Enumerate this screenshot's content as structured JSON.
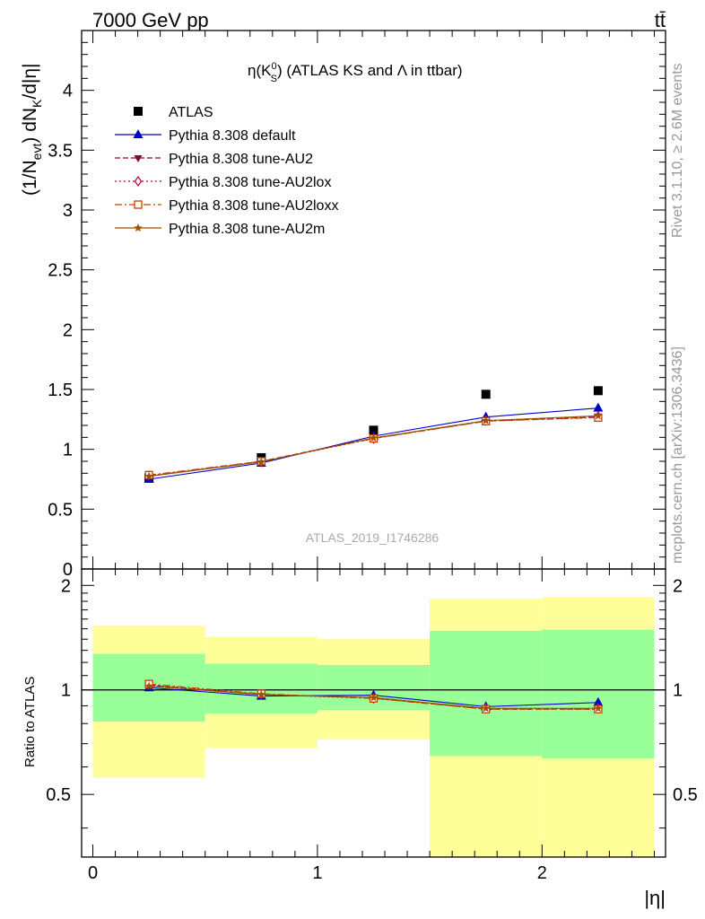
{
  "header": {
    "left": "7000 GeV pp",
    "right": "tt̄"
  },
  "side_labels": {
    "rivet": "Rivet 3.1.10, ≥ 2.6M events",
    "mcplots": "mcplots.cern.ch [arXiv:1306.3436]"
  },
  "chart_data": [
    {
      "type": "scatter",
      "panel": "main",
      "title": "η(K⁰S) (ATLAS KS and Λ in ttbar)",
      "title_parts": {
        "pre": "η(K",
        "sup": "0",
        "sub": "S",
        "post": ") (ATLAS KS and Λ in ttbar)"
      },
      "ylabel": "(1/Nevt) dNK/d|η|",
      "ylabel_parts": {
        "a": "(1/N",
        "b": "evt",
        "c": ") dN",
        "d": "K",
        "e": "/d|η|"
      },
      "watermark": "ATLAS_2019_I1746286",
      "xlim": [
        -0.05,
        2.55
      ],
      "ylim": [
        0,
        4.5
      ],
      "yticks": [
        0,
        0.5,
        1,
        1.5,
        2,
        2.5,
        3,
        3.5,
        4
      ],
      "ytick_labels": [
        "0",
        "0.5",
        "1",
        "1.5",
        "2",
        "2.5",
        "3",
        "3.5",
        "4"
      ],
      "x": [
        0.25,
        0.75,
        1.25,
        1.75,
        2.25
      ],
      "legend_position": "top-left",
      "series": [
        {
          "name": "ATLAS",
          "values": [
            0.76,
            0.93,
            1.16,
            1.46,
            1.49
          ],
          "color": "#000000",
          "marker": "square",
          "line": "none"
        },
        {
          "name": "Pythia 8.308 default",
          "values": [
            0.75,
            0.885,
            1.11,
            1.27,
            1.345
          ],
          "color": "#0000cc",
          "marker": "triangle-up",
          "line": "solid"
        },
        {
          "name": "Pythia 8.308 tune-AU2",
          "values": [
            0.775,
            0.9,
            1.095,
            1.235,
            1.27
          ],
          "color": "#8b0038",
          "marker": "triangle-down",
          "line": "dashed"
        },
        {
          "name": "Pythia 8.308 tune-AU2lox",
          "values": [
            0.78,
            0.895,
            1.09,
            1.24,
            1.275
          ],
          "color": "#b8003c",
          "marker": "diamond-open",
          "line": "dotted"
        },
        {
          "name": "Pythia 8.308 tune-AU2loxx",
          "values": [
            0.785,
            0.9,
            1.09,
            1.235,
            1.265
          ],
          "color": "#c84000",
          "marker": "square-open",
          "line": "dashdot"
        },
        {
          "name": "Pythia 8.308 tune-AU2m",
          "values": [
            0.775,
            0.895,
            1.095,
            1.24,
            1.28
          ],
          "color": "#9a5200",
          "marker": "star",
          "line": "solid"
        }
      ]
    },
    {
      "type": "line",
      "panel": "ratio",
      "ylabel": "Ratio to ATLAS",
      "xlabel": "|η|",
      "xlim": [
        -0.05,
        2.55
      ],
      "ylim": [
        0.33,
        2.23
      ],
      "yscale": "log",
      "yticks": [
        0.5,
        1,
        2
      ],
      "ytick_labels": [
        "0.5",
        "1",
        "2"
      ],
      "xticks": [
        0,
        1,
        2
      ],
      "xtick_labels": [
        "0",
        "1",
        "2"
      ],
      "x": [
        0.25,
        0.75,
        1.25,
        1.75,
        2.25
      ],
      "bins": [
        [
          0,
          0.5
        ],
        [
          0.5,
          1.0
        ],
        [
          1.0,
          1.5
        ],
        [
          1.5,
          2.0
        ],
        [
          2.0,
          2.5
        ]
      ],
      "band_outer": [
        [
          0.56,
          1.53
        ],
        [
          0.68,
          1.42
        ],
        [
          0.72,
          1.4
        ],
        [
          0.33,
          1.83
        ],
        [
          0.33,
          1.85
        ]
      ],
      "band_inner": [
        [
          0.81,
          1.27
        ],
        [
          0.855,
          1.19
        ],
        [
          0.875,
          1.18
        ],
        [
          0.645,
          1.48
        ],
        [
          0.635,
          1.49
        ]
      ],
      "band_colors": {
        "outer": "#ffff99",
        "inner": "#99ff99"
      },
      "series": [
        {
          "name": "Pythia 8.308 default",
          "values": [
            1.015,
            0.96,
            0.965,
            0.895,
            0.92
          ],
          "color": "#0000cc",
          "marker": "triangle-up",
          "line": "solid"
        },
        {
          "name": "Pythia 8.308 tune-AU2",
          "values": [
            1.03,
            0.97,
            0.95,
            0.88,
            0.88
          ],
          "color": "#8b0038",
          "marker": "triangle-down",
          "line": "dashed"
        },
        {
          "name": "Pythia 8.308 tune-AU2lox",
          "values": [
            1.035,
            0.97,
            0.945,
            0.885,
            0.885
          ],
          "color": "#b8003c",
          "marker": "diamond-open",
          "line": "dotted"
        },
        {
          "name": "Pythia 8.308 tune-AU2loxx",
          "values": [
            1.04,
            0.975,
            0.945,
            0.88,
            0.88
          ],
          "color": "#c84000",
          "marker": "square-open",
          "line": "dashdot"
        },
        {
          "name": "Pythia 8.308 tune-AU2m",
          "values": [
            1.025,
            0.97,
            0.95,
            0.885,
            0.885
          ],
          "color": "#9a5200",
          "marker": "star",
          "line": "solid"
        }
      ]
    }
  ]
}
